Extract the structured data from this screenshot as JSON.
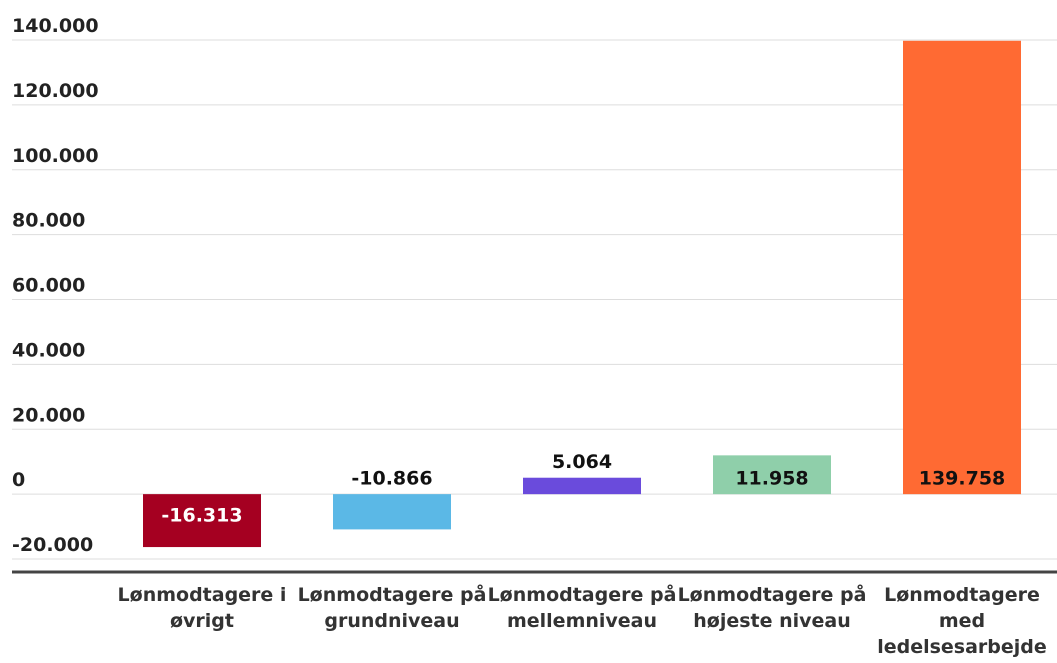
{
  "chart_data": {
    "type": "bar",
    "categories": [
      "Lønmodtagere i øvrigt",
      "Lønmodtagere på grundniveau",
      "Lønmodtagere på mellemniveau",
      "Lønmodtagere på højeste niveau",
      "Lønmodtagere med ledelsesarbejde"
    ],
    "values": [
      -16313,
      -10866,
      5064,
      11958,
      139758
    ],
    "value_labels": [
      "-16.313",
      "-10.866",
      "5.064",
      "11.958",
      "139.758"
    ],
    "colors": [
      "#a50021",
      "#5bb8e6",
      "#6a4bdc",
      "#8fcfaa",
      "#ff6a33"
    ],
    "ylim": [
      -24000,
      140000
    ],
    "yticks": [
      {
        "value": -20000,
        "label": "-20.000"
      },
      0,
      {
        "value": 20000,
        "label": "20.000"
      },
      {
        "value": 40000,
        "label": "40.000"
      },
      {
        "value": 60000,
        "label": "60.000"
      },
      {
        "value": 80000,
        "label": "80.000"
      },
      {
        "value": 100000,
        "label": "100.000"
      },
      {
        "value": 120000,
        "label": "120.000"
      },
      {
        "value": 140000,
        "label": "140.000"
      }
    ],
    "grid": true
  }
}
